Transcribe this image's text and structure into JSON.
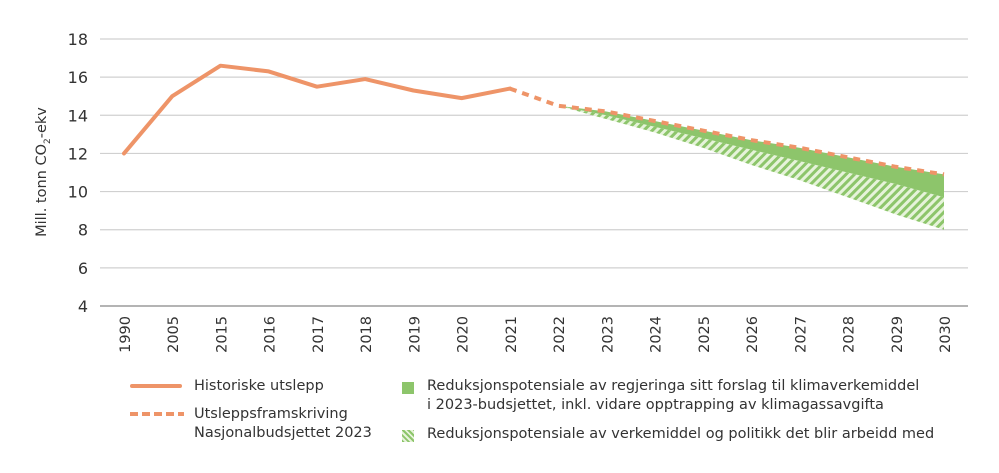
{
  "chart_data": {
    "type": "line",
    "ylabel": "Mill. tonn CO2-ekv",
    "ylabel_main": "Mill. tonn CO",
    "ylabel_sub": "2",
    "ylabel_suffix": "-ekv",
    "ylim": [
      4,
      18
    ],
    "yticks": [
      4,
      6,
      8,
      10,
      12,
      14,
      16,
      18
    ],
    "grid": true,
    "categories": [
      "1990",
      "2005",
      "2015",
      "2016",
      "2017",
      "2018",
      "2019",
      "2020",
      "2021",
      "2022",
      "2023",
      "2024",
      "2025",
      "2026",
      "2027",
      "2028",
      "2029",
      "2030"
    ],
    "series": [
      {
        "name": "Historiske utslepp",
        "style": "solid",
        "color": "#ee9468",
        "values": [
          12.0,
          15.0,
          16.6,
          16.3,
          15.5,
          15.9,
          15.3,
          14.9,
          15.4,
          null,
          null,
          null,
          null,
          null,
          null,
          null,
          null,
          null
        ]
      },
      {
        "name": "Utsleppsframskriving Nasjonalbudsjettet 2023",
        "style": "dashed",
        "color": "#ee9468",
        "values": [
          null,
          null,
          null,
          null,
          null,
          null,
          null,
          null,
          15.4,
          14.5,
          14.2,
          13.7,
          13.2,
          12.7,
          12.3,
          11.8,
          11.3,
          10.9
        ]
      },
      {
        "name": "Reduksjonspotensiale av regjeringa sitt forslag til klimaverkemiddel i 2023-budsjettet, inkl. vidare opptrapping av klimagassavgifta",
        "style": "area-solid",
        "color": "#8dc56b",
        "lower": [
          null,
          null,
          null,
          null,
          null,
          null,
          null,
          null,
          null,
          14.5,
          14.0,
          13.4,
          12.8,
          12.2,
          11.6,
          11.0,
          10.4,
          9.7
        ]
      },
      {
        "name": "Reduksjonspotensiale av verkemiddel og politikk det blir arbeidd med",
        "style": "area-hatched",
        "color": "#8dc56b",
        "lower": [
          null,
          null,
          null,
          null,
          null,
          null,
          null,
          null,
          null,
          14.5,
          13.8,
          13.1,
          12.3,
          11.4,
          10.6,
          9.7,
          8.8,
          8.0
        ]
      }
    ],
    "legend_position": "bottom"
  },
  "legend": {
    "historic": "Historiske utslepp",
    "projection_1": "Utsleppsframskriving",
    "projection_2": "Nasjonalbudsjettet 2023",
    "green_1": "Reduksjonspotensiale av regjeringa sitt forslag til klimaverkemiddel",
    "green_2": "i 2023-budsjettet, inkl. vidare opptrapping av klimagassavgifta",
    "hatched": "Reduksjonspotensiale av verkemiddel og politikk det blir arbeidd med"
  }
}
